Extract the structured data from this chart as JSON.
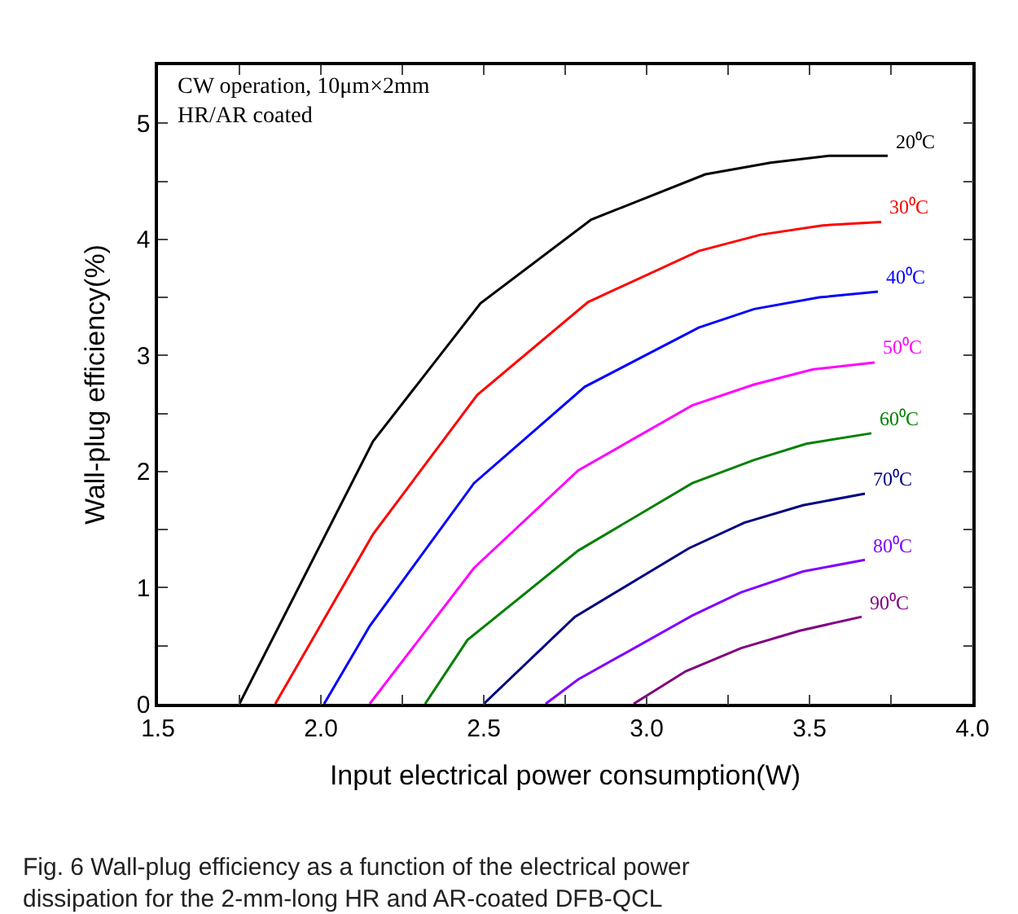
{
  "chart_data": {
    "type": "line",
    "xlabel": "Input electrical power consumption(W)",
    "ylabel": "Wall-plug efficiency(%)",
    "xlim": [
      1.5,
      4.0
    ],
    "ylim": [
      0,
      5.5
    ],
    "xticks": [
      1.5,
      {
        "value": 1.75,
        "label": null
      },
      {
        "value": 2,
        "label": "2.0"
      },
      {
        "value": 2.25,
        "label": null
      },
      2.5,
      {
        "value": 2.75,
        "label": null
      },
      {
        "value": 3,
        "label": "3.0"
      },
      {
        "value": 3.25,
        "label": null
      },
      3.5,
      {
        "value": 3.75,
        "label": null
      },
      {
        "value": 4,
        "label": "4.0"
      }
    ],
    "yticks": [
      0,
      {
        "value": 0.5,
        "label": null
      },
      1,
      {
        "value": 1.5,
        "label": null
      },
      2,
      {
        "value": 2.5,
        "label": null
      },
      3,
      {
        "value": 3.5,
        "label": null
      },
      4,
      {
        "value": 4.5,
        "label": null
      },
      5
    ],
    "legend": false,
    "marker": "none",
    "line_style": "solid",
    "series": [
      {
        "name": "20⁰C",
        "color": "#000000",
        "x": [
          1.75,
          2.16,
          2.49,
          2.83,
          3.18,
          3.38,
          3.56,
          3.74
        ],
        "values": [
          0,
          2.26,
          3.45,
          4.17,
          4.56,
          4.66,
          4.72,
          4.72
        ]
      },
      {
        "name": "30⁰C",
        "color": "#ff0000",
        "x": [
          1.86,
          2.16,
          2.48,
          2.82,
          3.16,
          3.35,
          3.54,
          3.72
        ],
        "values": [
          0,
          1.46,
          2.66,
          3.46,
          3.9,
          4.04,
          4.12,
          4.15
        ]
      },
      {
        "name": "40⁰C",
        "color": "#0000ff",
        "x": [
          2.01,
          2.15,
          2.47,
          2.81,
          3.16,
          3.33,
          3.53,
          3.71
        ],
        "values": [
          0,
          0.67,
          1.9,
          2.73,
          3.24,
          3.4,
          3.5,
          3.55
        ]
      },
      {
        "name": "50⁰C",
        "color": "#ff00ff",
        "x": [
          2.15,
          2.47,
          2.79,
          3.14,
          3.33,
          3.51,
          3.7
        ],
        "values": [
          0,
          1.17,
          2.01,
          2.57,
          2.75,
          2.88,
          2.94
        ]
      },
      {
        "name": "60⁰C",
        "color": "#008000",
        "x": [
          2.32,
          2.45,
          2.79,
          3.14,
          3.33,
          3.49,
          3.69
        ],
        "values": [
          0,
          0.55,
          1.32,
          1.9,
          2.1,
          2.24,
          2.33
        ]
      },
      {
        "name": "70⁰C",
        "color": "#000080",
        "x": [
          2.5,
          2.78,
          3.13,
          3.3,
          3.48,
          3.67
        ],
        "values": [
          0,
          0.75,
          1.34,
          1.56,
          1.71,
          1.81
        ]
      },
      {
        "name": "80⁰C",
        "color": "#8000ff",
        "x": [
          2.69,
          2.79,
          3.14,
          3.29,
          3.48,
          3.67
        ],
        "values": [
          0,
          0.21,
          0.76,
          0.96,
          1.14,
          1.24
        ]
      },
      {
        "name": "90⁰C",
        "color": "#800080",
        "x": [
          2.96,
          3.12,
          3.29,
          3.47,
          3.66
        ],
        "values": [
          0,
          0.28,
          0.48,
          0.63,
          0.75
        ]
      }
    ],
    "annotations": [
      "CW operation, 10μm×2mm\nHR/AR coated",
      "Fig. 6 Wall-plug efficiency as a function of the electrical power dissipation for the 2-mm-long HR and AR-coated DFB-QCL"
    ]
  }
}
